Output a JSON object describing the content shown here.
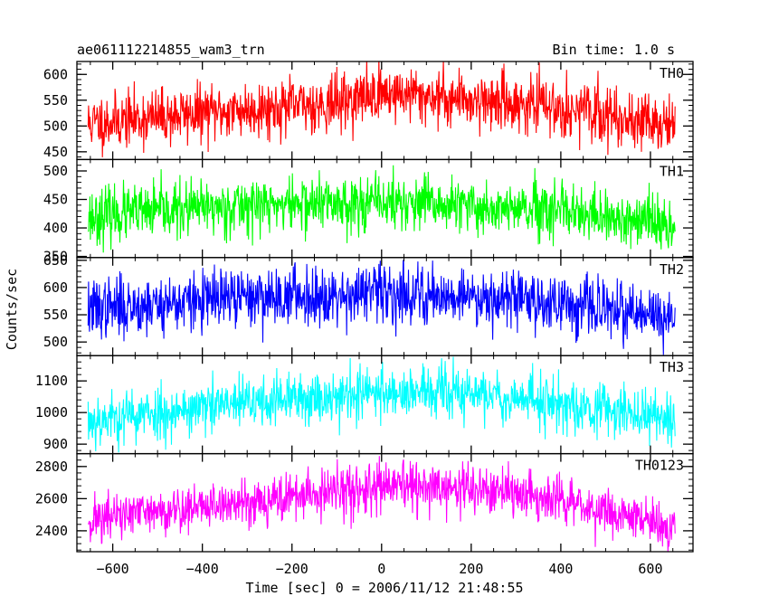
{
  "chart_data": {
    "type": "line",
    "title_left": "ae061112214855_wam3_trn",
    "title_right": "Bin time: 1.0 s",
    "xlabel": "Time [sec] 0 = 2006/11/12 21:48:55",
    "ylabel": "Counts/sec",
    "xlim": [
      -680,
      695
    ],
    "x_ticks": [
      -600,
      -400,
      -200,
      0,
      200,
      400,
      600
    ],
    "x_tick_labels": [
      "−600",
      "−400",
      "−200",
      "0",
      "200",
      "400",
      "600"
    ],
    "x_range": [
      -655,
      655
    ],
    "bin_time": 1.0,
    "panels": [
      {
        "name": "TH0",
        "color": "#ff0000",
        "ylim": [
          435,
          625
        ],
        "y_ticks": [
          450,
          500,
          550,
          600
        ],
        "y_tick_labels": [
          "450",
          "500",
          "550",
          "600"
        ],
        "trend": [
          {
            "x": -655,
            "y": 505
          },
          {
            "x": -400,
            "y": 525
          },
          {
            "x": -100,
            "y": 545
          },
          {
            "x": 0,
            "y": 565
          },
          {
            "x": 200,
            "y": 552
          },
          {
            "x": 400,
            "y": 535
          },
          {
            "x": 655,
            "y": 500
          }
        ],
        "noise": 27,
        "seed": 11
      },
      {
        "name": "TH1",
        "color": "#00ff00",
        "ylim": [
          348,
          520
        ],
        "y_ticks": [
          350,
          400,
          450,
          500
        ],
        "y_tick_labels": [
          "350",
          "400",
          "450",
          "500"
        ],
        "trend": [
          {
            "x": -655,
            "y": 420
          },
          {
            "x": -300,
            "y": 440
          },
          {
            "x": 0,
            "y": 445
          },
          {
            "x": 300,
            "y": 432
          },
          {
            "x": 655,
            "y": 405
          }
        ],
        "noise": 24,
        "seed": 23
      },
      {
        "name": "TH2",
        "color": "#0000ff",
        "ylim": [
          475,
          655
        ],
        "y_ticks": [
          500,
          550,
          600,
          650
        ],
        "y_tick_labels": [
          "500",
          "550",
          "600",
          "650"
        ],
        "trend": [
          {
            "x": -655,
            "y": 560
          },
          {
            "x": -300,
            "y": 582
          },
          {
            "x": 0,
            "y": 590
          },
          {
            "x": 300,
            "y": 582
          },
          {
            "x": 655,
            "y": 540
          }
        ],
        "noise": 27,
        "seed": 37
      },
      {
        "name": "TH3",
        "color": "#00ffff",
        "ylim": [
          870,
          1180
        ],
        "y_ticks": [
          900,
          1000,
          1100
        ],
        "y_tick_labels": [
          "900",
          "1000",
          "1100"
        ],
        "trend": [
          {
            "x": -655,
            "y": 975
          },
          {
            "x": -300,
            "y": 1030
          },
          {
            "x": 0,
            "y": 1065
          },
          {
            "x": 200,
            "y": 1060
          },
          {
            "x": 400,
            "y": 1030
          },
          {
            "x": 655,
            "y": 980
          }
        ],
        "noise": 42,
        "seed": 53
      },
      {
        "name": "TH0123",
        "color": "#ff00ff",
        "ylim": [
          2270,
          2880
        ],
        "y_ticks": [
          2400,
          2600,
          2800
        ],
        "y_tick_labels": [
          "2400",
          "2600",
          "2800"
        ],
        "trend": [
          {
            "x": -655,
            "y": 2470
          },
          {
            "x": -300,
            "y": 2580
          },
          {
            "x": 0,
            "y": 2670
          },
          {
            "x": 200,
            "y": 2660
          },
          {
            "x": 400,
            "y": 2590
          },
          {
            "x": 655,
            "y": 2420
          }
        ],
        "noise": 75,
        "seed": 71
      }
    ]
  }
}
